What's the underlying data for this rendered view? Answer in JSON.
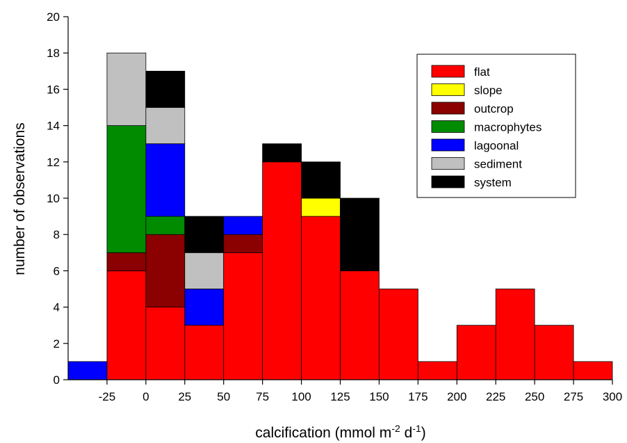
{
  "chart_data": {
    "type": "bar",
    "stacked": true,
    "bin_width": 25,
    "bin_starts": [
      -50,
      -25,
      0,
      25,
      50,
      75,
      100,
      125,
      150,
      175,
      200,
      225,
      250,
      275
    ],
    "xlim": [
      -50,
      300
    ],
    "ylim": [
      0,
      20
    ],
    "x_ticks": [
      -25,
      0,
      25,
      50,
      75,
      100,
      125,
      150,
      175,
      200,
      225,
      250,
      275,
      300
    ],
    "x_tick_labels": [
      "-25",
      "0",
      "25",
      "50",
      "75",
      "100",
      "125",
      "150",
      "175",
      "200",
      "225",
      "250",
      "275",
      "300"
    ],
    "y_ticks": [
      0,
      2,
      4,
      6,
      8,
      10,
      12,
      14,
      16,
      18,
      20
    ],
    "y_tick_labels": [
      "0",
      "2",
      "4",
      "6",
      "8",
      "10",
      "12",
      "14",
      "16",
      "18",
      "20"
    ],
    "xlabel_prefix": "calcification (mmol m",
    "xlabel_sup1": "-2",
    "xlabel_mid": " d",
    "xlabel_sup2": "-1",
    "xlabel_suffix": ")",
    "ylabel": "number of observations",
    "legend_placement": "top-right",
    "grid": false,
    "series": [
      {
        "name": "flat",
        "color": "#ff0000",
        "values": [
          0,
          6,
          4,
          3,
          7,
          12,
          9,
          6,
          5,
          1,
          3,
          5,
          3,
          1
        ]
      },
      {
        "name": "slope",
        "color": "#ffff00",
        "values": [
          0,
          0,
          0,
          0,
          0,
          0,
          1,
          0,
          0,
          0,
          0,
          0,
          0,
          0
        ]
      },
      {
        "name": "outcrop",
        "color": "#8b0000",
        "values": [
          0,
          1,
          4,
          0,
          1,
          0,
          0,
          0,
          0,
          0,
          0,
          0,
          0,
          0
        ]
      },
      {
        "name": "macrophytes",
        "color": "#008b00",
        "values": [
          0,
          7,
          1,
          0,
          0,
          0,
          0,
          0,
          0,
          0,
          0,
          0,
          0,
          0
        ]
      },
      {
        "name": "lagoonal",
        "color": "#0000ff",
        "values": [
          1,
          0,
          4,
          2,
          1,
          0,
          0,
          0,
          0,
          0,
          0,
          0,
          0,
          0
        ]
      },
      {
        "name": "sediment",
        "color": "#c0c0c0",
        "values": [
          0,
          4,
          2,
          2,
          0,
          0,
          0,
          0,
          0,
          0,
          0,
          0,
          0,
          0
        ]
      },
      {
        "name": "system",
        "color": "#000000",
        "values": [
          0,
          0,
          2,
          2,
          0,
          1,
          2,
          4,
          0,
          0,
          0,
          0,
          0,
          0
        ]
      }
    ]
  }
}
